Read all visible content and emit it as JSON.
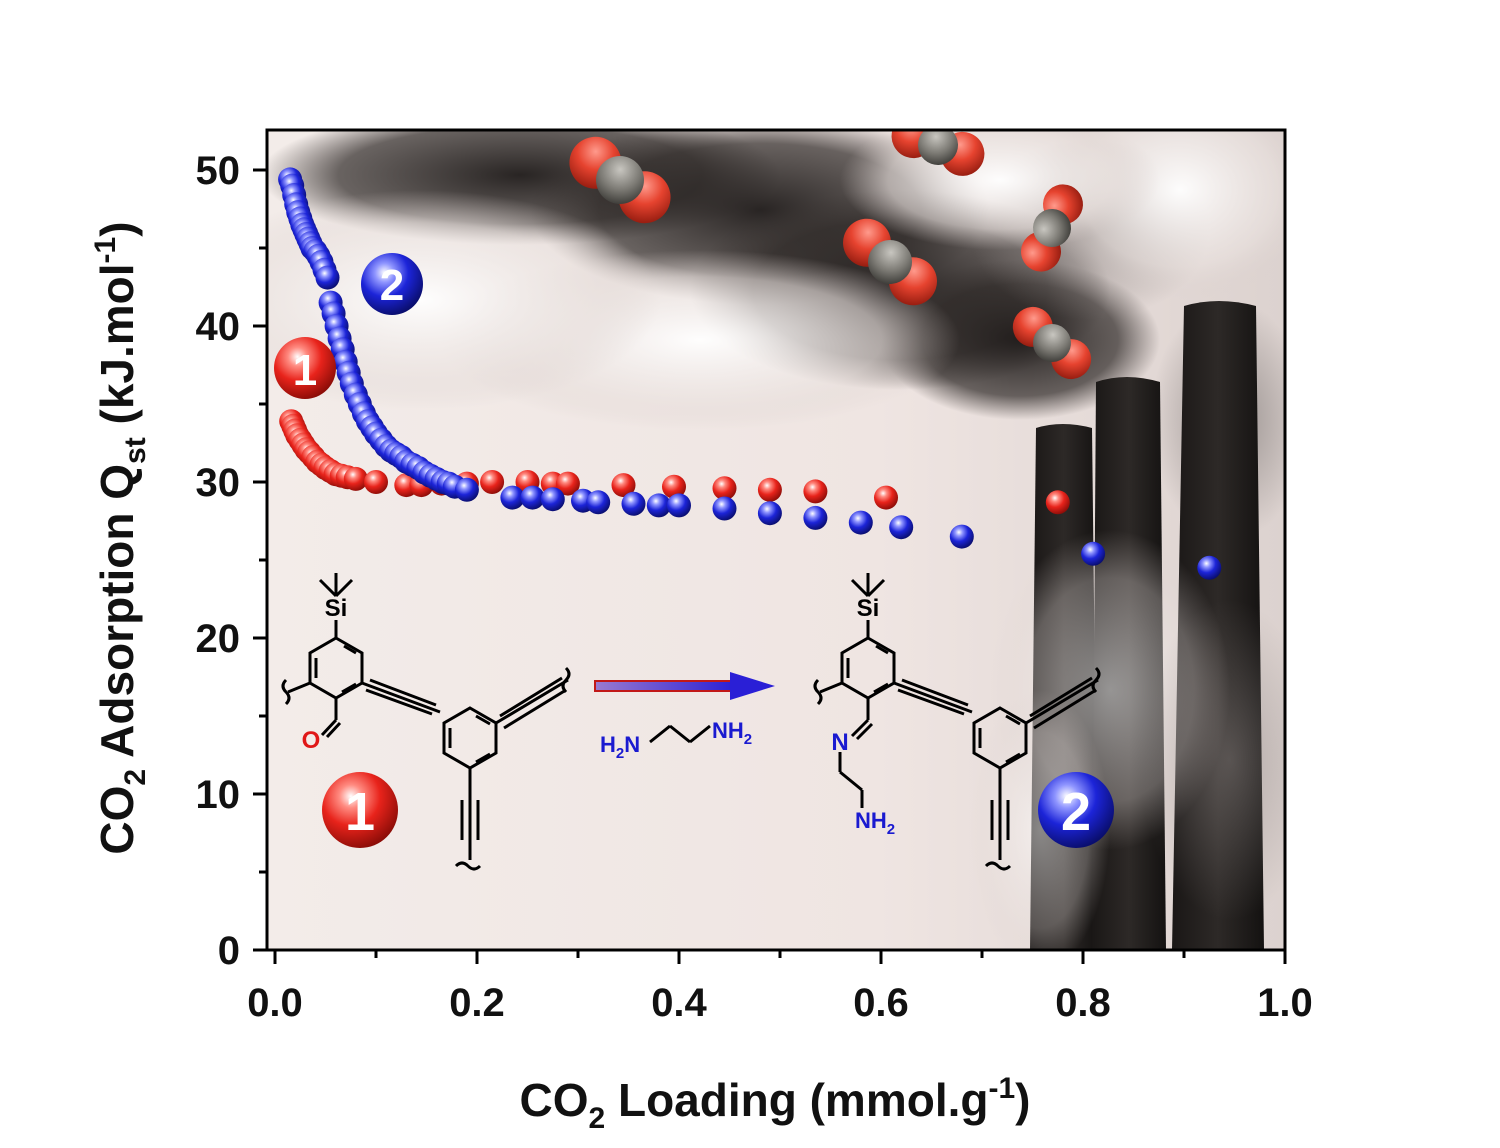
{
  "chart_data": {
    "type": "scatter",
    "x_axis": {
      "label_main": "CO",
      "label_sub": "2",
      "label_rest": " Loading (mmol.g",
      "label_sup": "-1",
      "label_end": ")",
      "range": [
        0.0,
        1.0
      ],
      "ticks": [
        "0.0",
        "0.2",
        "0.4",
        "0.6",
        "0.8",
        "1.0"
      ]
    },
    "y_axis": {
      "label_main": "CO",
      "label_sub": "2",
      "label_mid": " Adsorption Q",
      "label_sub2": "st",
      "label_rest": " (kJ.mol",
      "label_sup": "-1",
      "label_end": ")",
      "range": [
        0,
        52
      ],
      "ticks": [
        "0",
        "10",
        "20",
        "30",
        "40",
        "50"
      ]
    },
    "grid": false,
    "series": [
      {
        "name": "1",
        "color": "#e8231b",
        "x": [
          0.016,
          0.018,
          0.02,
          0.022,
          0.025,
          0.028,
          0.031,
          0.034,
          0.038,
          0.042,
          0.046,
          0.05,
          0.055,
          0.06,
          0.066,
          0.072,
          0.08,
          0.1,
          0.13,
          0.145,
          0.165,
          0.19,
          0.215,
          0.25,
          0.275,
          0.29,
          0.345,
          0.395,
          0.445,
          0.49,
          0.535,
          0.605,
          0.775
        ],
        "y": [
          33.9,
          33.6,
          33.3,
          33.0,
          32.7,
          32.4,
          32.1,
          31.9,
          31.6,
          31.3,
          31.1,
          30.9,
          30.7,
          30.5,
          30.4,
          30.3,
          30.2,
          30.0,
          29.8,
          29.8,
          29.9,
          29.9,
          30.0,
          30.0,
          29.9,
          29.9,
          29.8,
          29.7,
          29.6,
          29.5,
          29.4,
          29.0,
          28.7
        ]
      },
      {
        "name": "2",
        "color": "#1c24d8",
        "x": [
          0.015,
          0.017,
          0.019,
          0.021,
          0.023,
          0.025,
          0.027,
          0.029,
          0.031,
          0.033,
          0.035,
          0.037,
          0.04,
          0.043,
          0.046,
          0.049,
          0.052,
          0.055,
          0.058,
          0.061,
          0.064,
          0.067,
          0.07,
          0.073,
          0.076,
          0.08,
          0.084,
          0.088,
          0.092,
          0.096,
          0.1,
          0.105,
          0.11,
          0.115,
          0.12,
          0.125,
          0.13,
          0.136,
          0.142,
          0.148,
          0.154,
          0.16,
          0.166,
          0.172,
          0.178,
          0.19,
          0.235,
          0.255,
          0.275,
          0.305,
          0.32,
          0.355,
          0.38,
          0.4,
          0.445,
          0.49,
          0.535,
          0.58,
          0.62,
          0.68,
          0.81,
          0.925
        ],
        "y": [
          49.4,
          49.0,
          48.4,
          47.8,
          47.3,
          46.9,
          46.5,
          46.2,
          45.9,
          45.6,
          45.3,
          45.0,
          44.8,
          44.5,
          44.1,
          43.6,
          43.1,
          41.5,
          40.8,
          40.0,
          39.2,
          38.5,
          37.7,
          37.0,
          36.3,
          35.6,
          35.0,
          34.4,
          33.9,
          33.5,
          33.1,
          32.7,
          32.3,
          32.0,
          31.8,
          31.6,
          31.3,
          31.1,
          30.9,
          30.6,
          30.4,
          30.2,
          30.0,
          29.9,
          29.7,
          29.5,
          29.0,
          29.0,
          28.9,
          28.8,
          28.7,
          28.6,
          28.5,
          28.5,
          28.3,
          28.0,
          27.7,
          27.4,
          27.1,
          26.5,
          25.4,
          24.5
        ]
      }
    ]
  },
  "annotations": {
    "badge_1": "1",
    "badge_2": "2",
    "reagent_left_H": "H",
    "reagent_left_sub": "2",
    "reagent_left_N": "N",
    "reagent_right_NH": "NH",
    "reagent_right_sub": "2",
    "si_label": "Si",
    "o_label": "O",
    "n_label": "N",
    "nh2_label": "NH",
    "nh2_sub": "2"
  },
  "colors": {
    "red_marker": "#e8231b",
    "blue_marker": "#1c24d8",
    "reagent_blue": "#1a1ad0",
    "oxygen_red": "#e01818"
  }
}
